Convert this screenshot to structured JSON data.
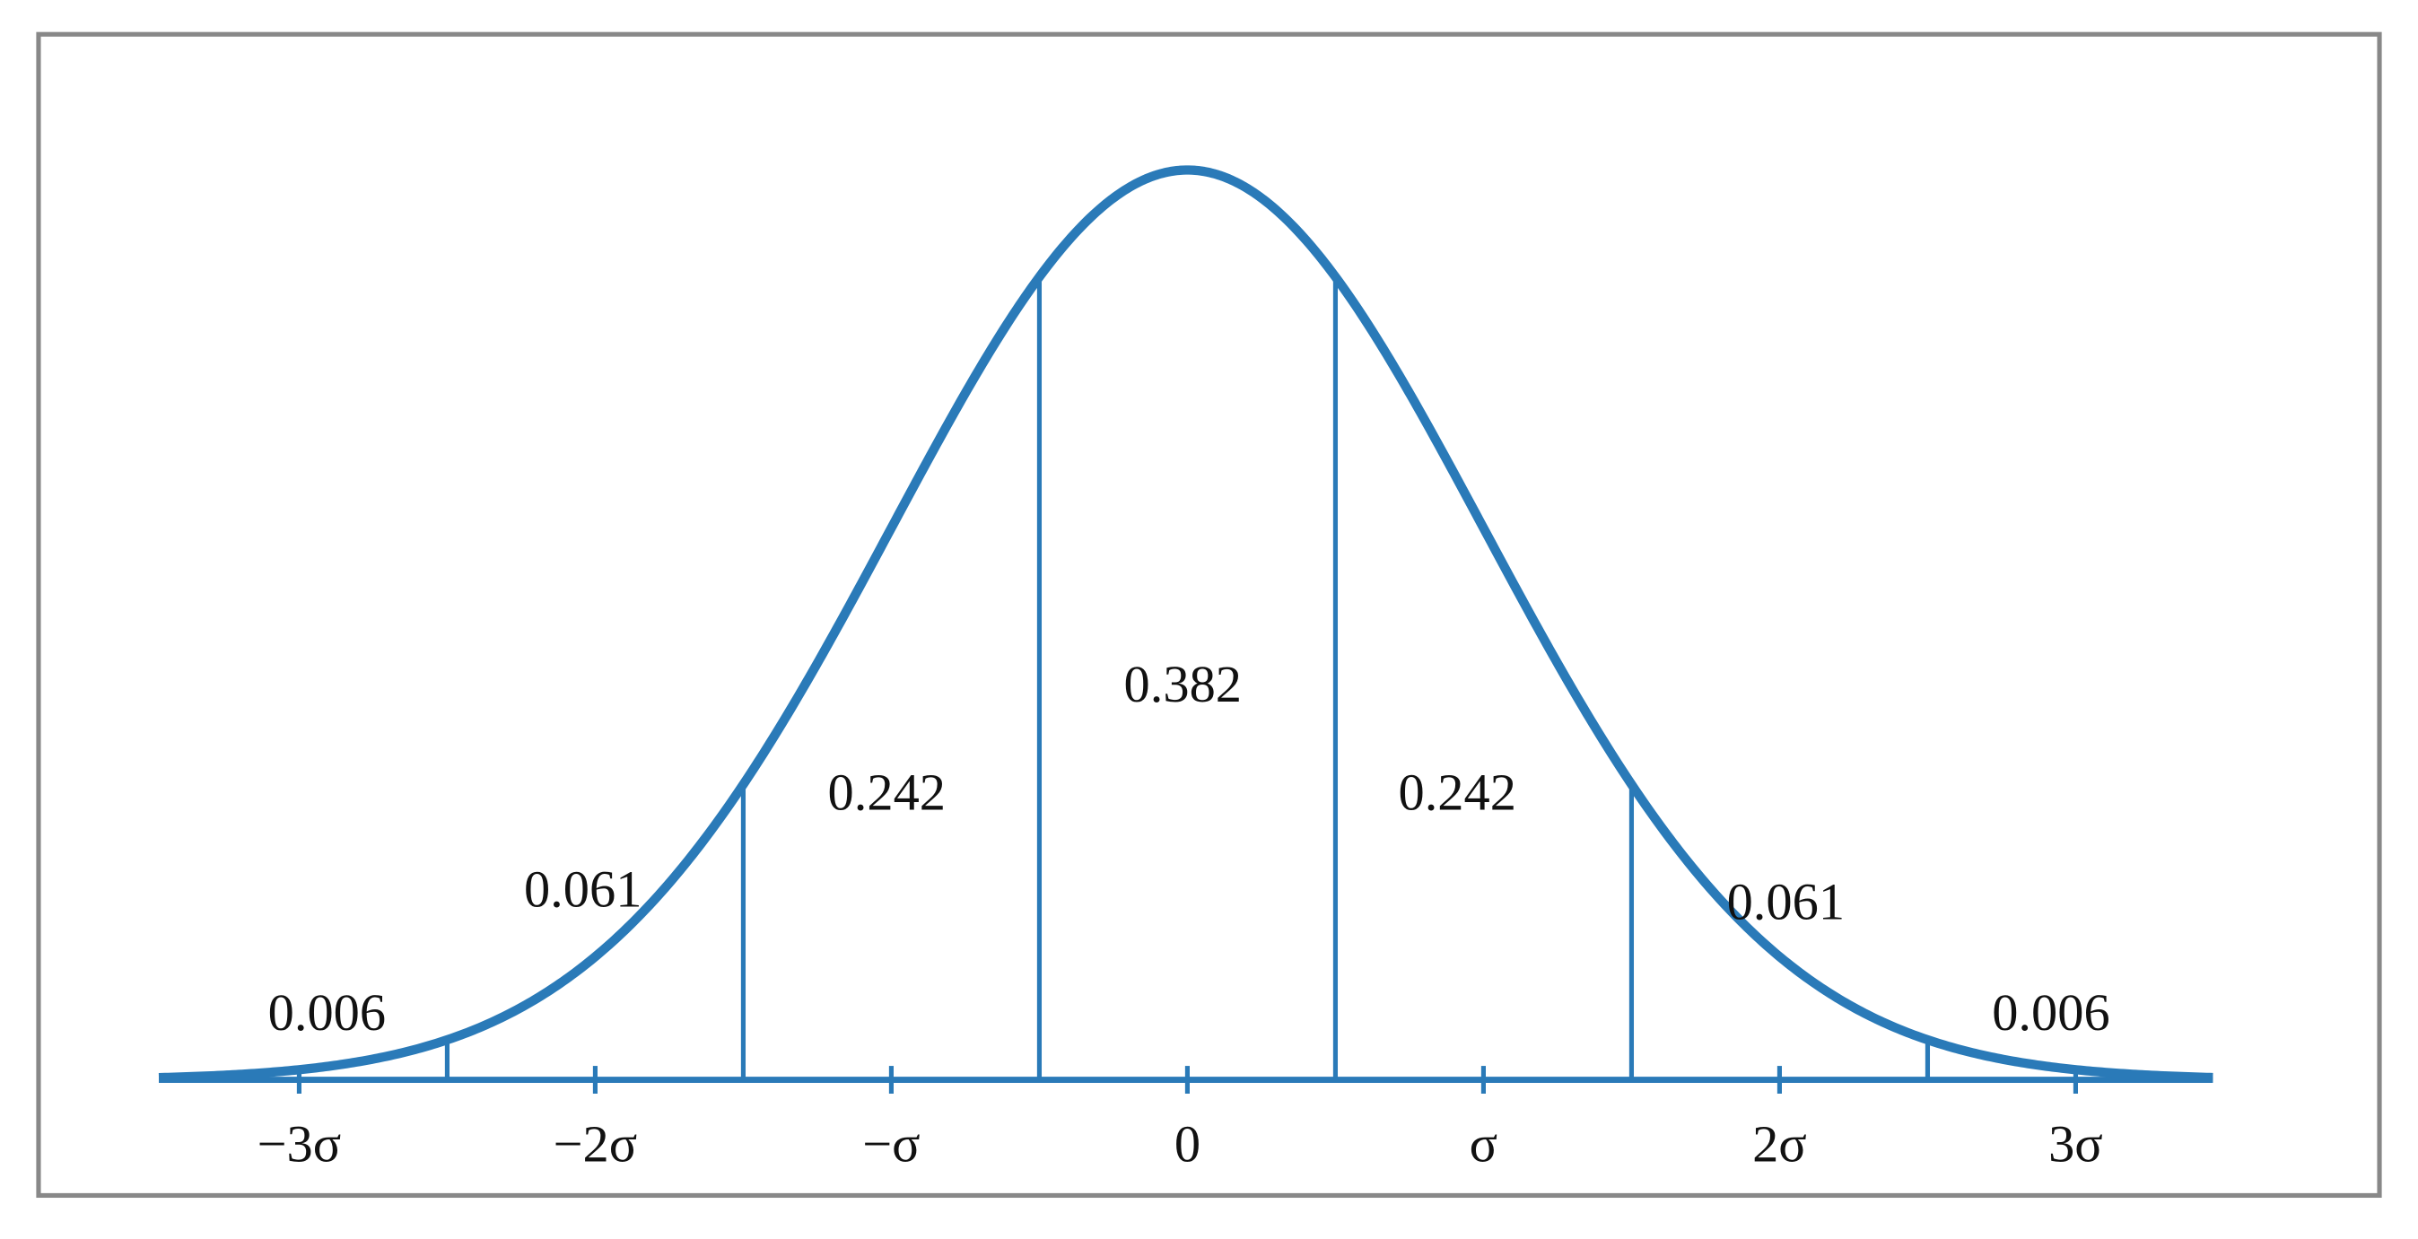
{
  "regions": [
    {
      "label": "0.006"
    },
    {
      "label": "0.061"
    },
    {
      "label": "0.242"
    },
    {
      "label": "0.382"
    },
    {
      "label": "0.242"
    },
    {
      "label": "0.061"
    },
    {
      "label": "0.006"
    }
  ],
  "axis_labels": [
    "−3σ",
    "−2σ",
    "−σ",
    "0",
    "σ",
    "2σ",
    "3σ"
  ]
}
